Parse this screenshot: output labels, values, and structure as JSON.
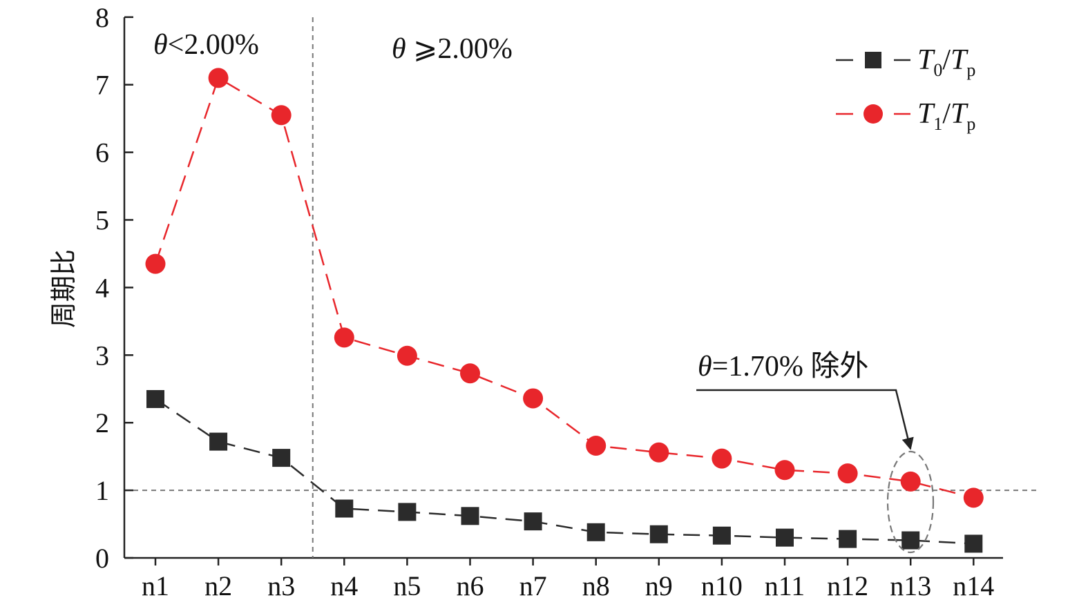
{
  "chart_data": {
    "type": "line",
    "ylabel": "周期比",
    "xlabel": "",
    "ylim": [
      0,
      8
    ],
    "yticks": [
      0,
      1,
      2,
      3,
      4,
      5,
      6,
      7,
      8
    ],
    "categories": [
      "n1",
      "n2",
      "n3",
      "n4",
      "n5",
      "n6",
      "n7",
      "n8",
      "n9",
      "n10",
      "n11",
      "n12",
      "n13",
      "n14"
    ],
    "series": [
      {
        "name": "T0/Tp",
        "name_parts": {
          "main": "T",
          "sub": "0",
          "slash": "/",
          "main2": "T",
          "sub2": "p"
        },
        "marker": "square",
        "color": "#2b2b2b",
        "values": [
          2.35,
          1.72,
          1.48,
          0.73,
          0.68,
          0.62,
          0.54,
          0.38,
          0.35,
          0.33,
          0.3,
          0.28,
          0.26,
          0.21
        ]
      },
      {
        "name": "T1/Tp",
        "name_parts": {
          "main": "T",
          "sub": "1",
          "slash": "/",
          "main2": "T",
          "sub2": "p"
        },
        "marker": "circle",
        "color": "#e8262b",
        "values": [
          4.35,
          7.1,
          6.55,
          3.26,
          2.99,
          2.73,
          2.36,
          1.66,
          1.56,
          1.47,
          1.3,
          1.25,
          1.13,
          0.89
        ]
      }
    ],
    "reference_line_y": 1,
    "divider_after_category": "n3",
    "annotations": {
      "left_region": {
        "symbol": "θ",
        "text": "<2.00%"
      },
      "right_region": {
        "symbol": "θ",
        "text": " ⩾2.00%"
      },
      "exception": {
        "symbol": "θ",
        "text": "=1.70% 除外",
        "target_category": "n13"
      }
    },
    "legend_position": "top-right",
    "grid": false
  }
}
